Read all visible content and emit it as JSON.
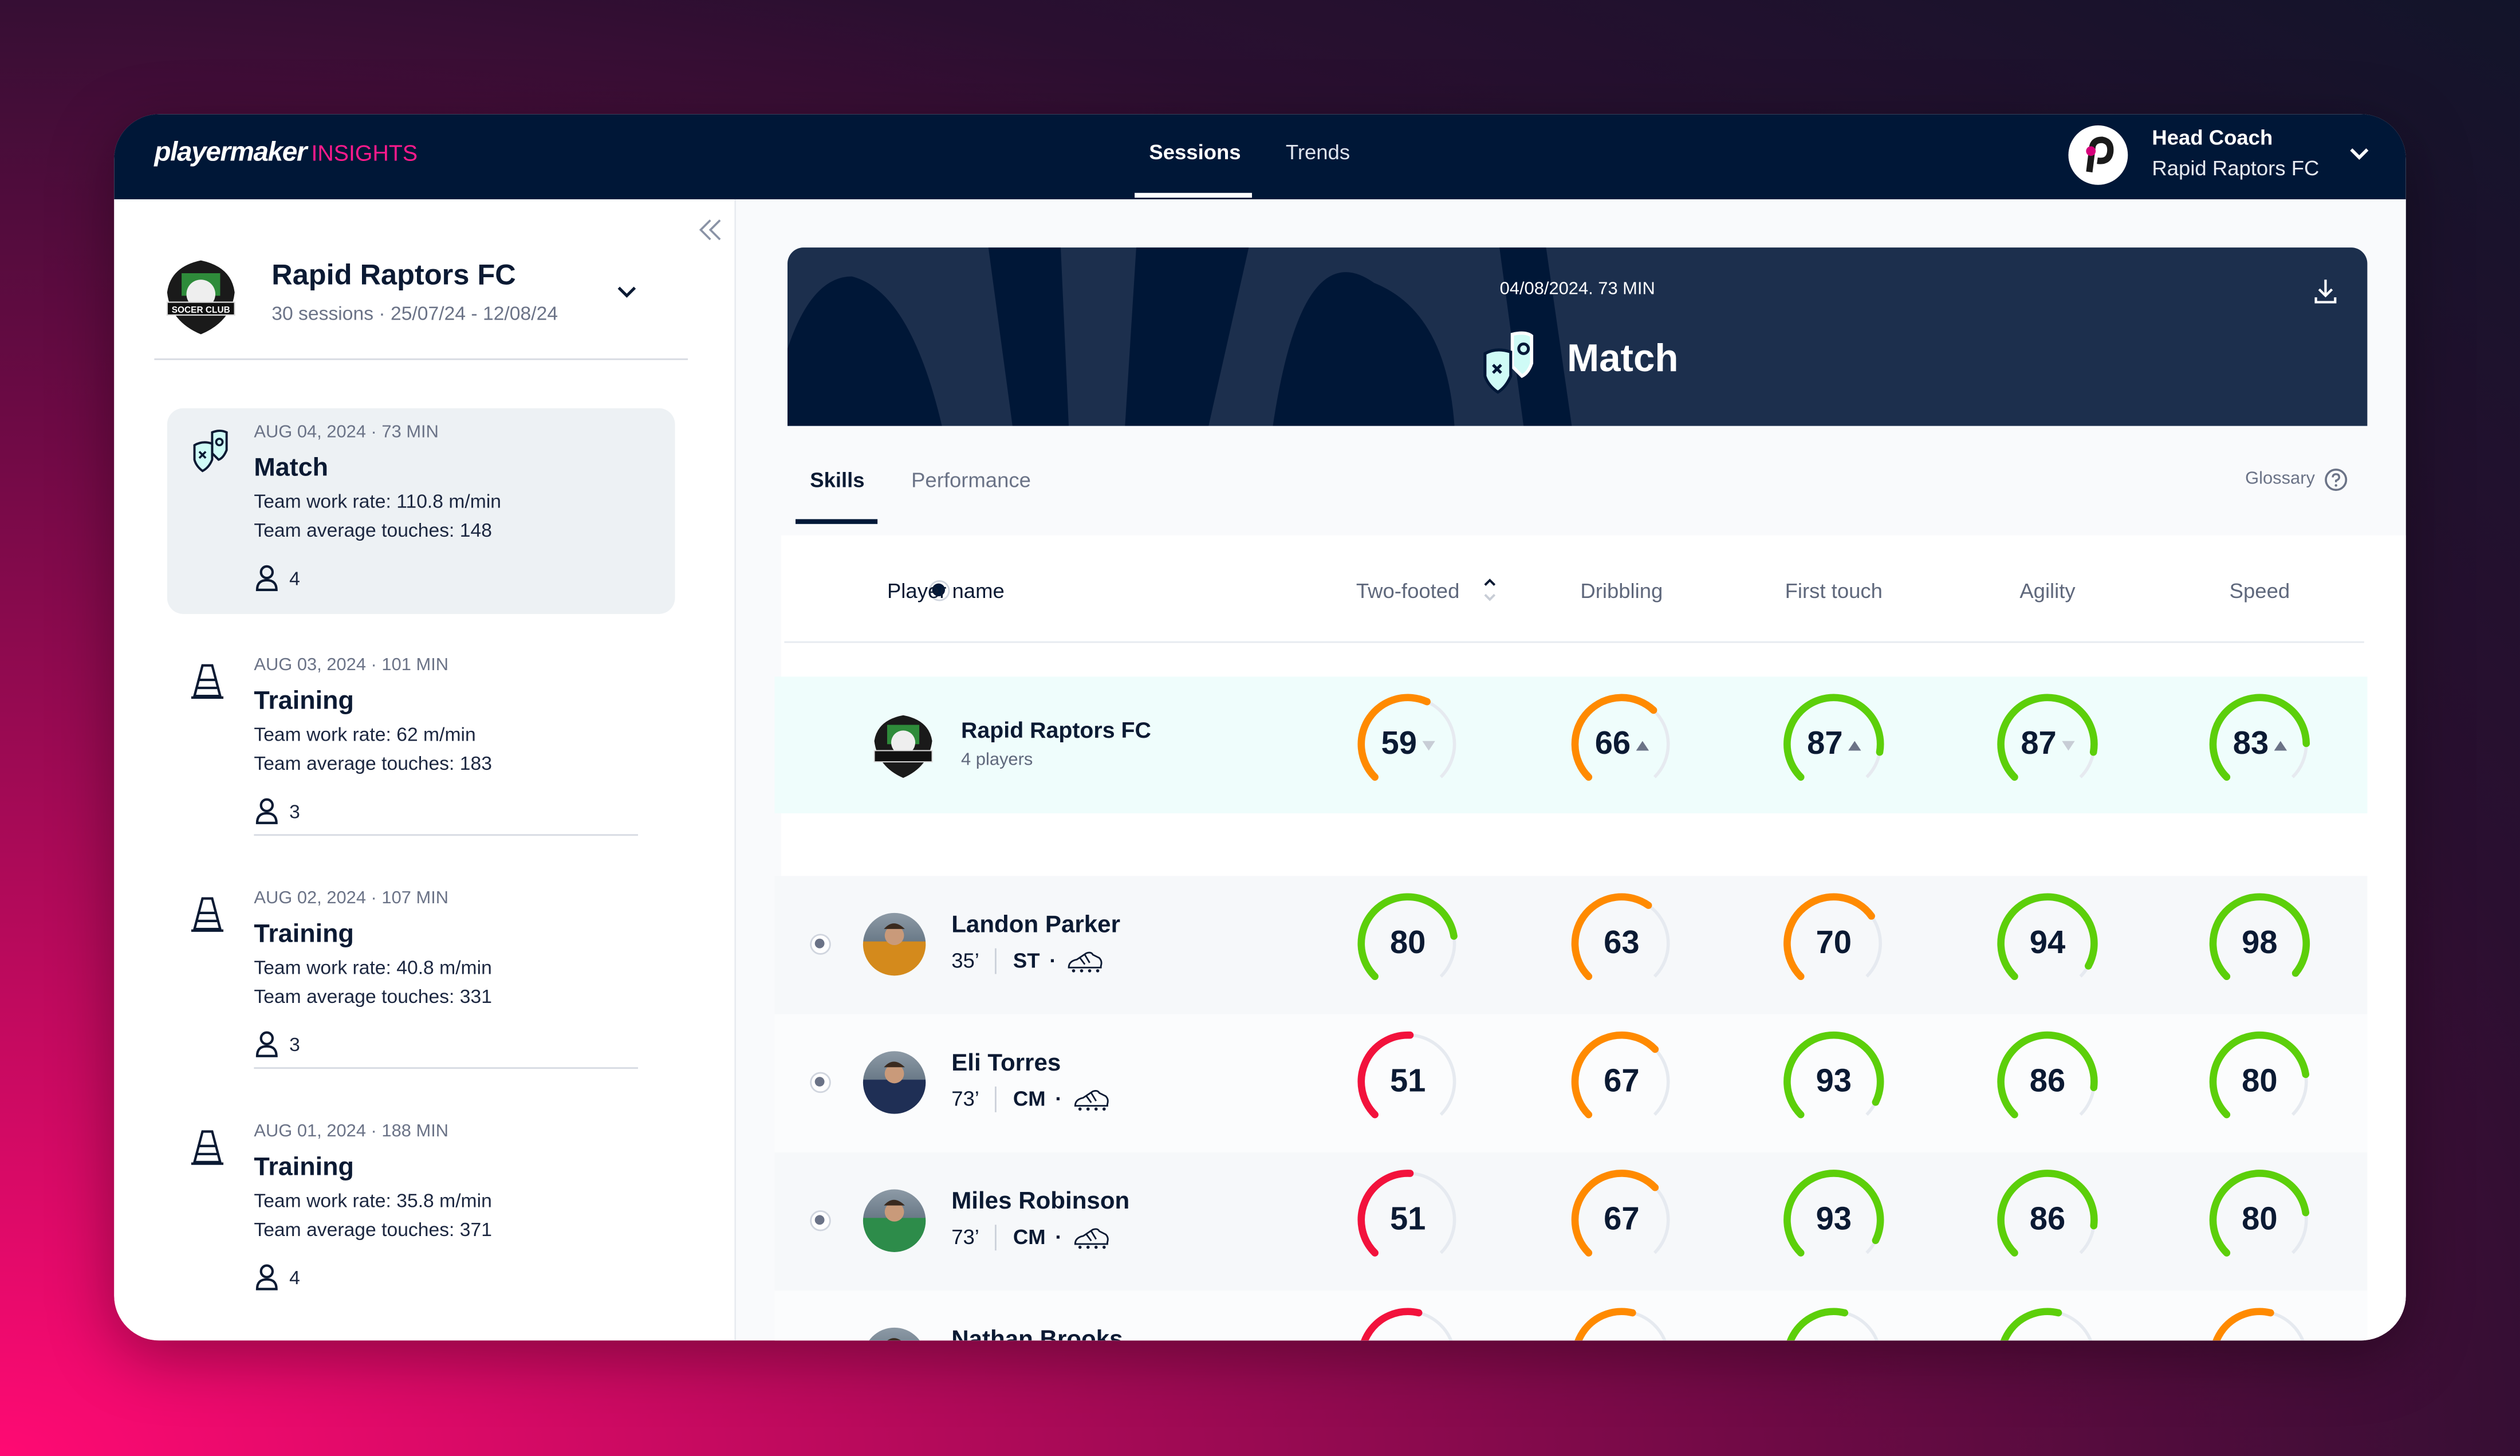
{
  "app": {
    "brand": "playermaker",
    "brand_suffix": "INSIGHTS",
    "accent": "#ff1a8c",
    "navy": "#001737"
  },
  "nav": {
    "tabs": [
      {
        "label": "Sessions",
        "active": true
      },
      {
        "label": "Trends",
        "active": false
      }
    ]
  },
  "user": {
    "role": "Head Coach",
    "team": "Rapid Raptors FC"
  },
  "sidebar": {
    "club_name": "Rapid Raptors FC",
    "club_crest_text": "SOCER CLUB",
    "summary": "30 sessions · 25/07/24 - 12/08/24",
    "sessions": [
      {
        "date": "AUG 04, 2024 · 73 MIN",
        "type": "Match",
        "icon": "match-shields-icon",
        "work_rate": "Team work rate: 110.8 m/min",
        "touches": "Team average touches: 148",
        "players": "4",
        "selected": true
      },
      {
        "date": "AUG 03, 2024 · 101 MIN",
        "type": "Training",
        "icon": "training-cone-icon",
        "work_rate": "Team work rate: 62 m/min",
        "touches": "Team average touches: 183",
        "players": "3",
        "selected": false
      },
      {
        "date": "AUG 02, 2024 · 107 MIN",
        "type": "Training",
        "icon": "training-cone-icon",
        "work_rate": "Team work rate: 40.8 m/min",
        "touches": "Team average touches: 331",
        "players": "3",
        "selected": false
      },
      {
        "date": "AUG 01, 2024 · 188 MIN",
        "type": "Training",
        "icon": "training-cone-icon",
        "work_rate": "Team work rate: 35.8 m/min",
        "touches": "Team average touches: 371",
        "players": "4",
        "selected": false
      }
    ]
  },
  "banner": {
    "date": "04/08/2024. 73 MIN",
    "title": "Match"
  },
  "tabs": [
    {
      "label": "Skills",
      "active": true
    },
    {
      "label": "Performance",
      "active": false
    }
  ],
  "glossary": "Glossary",
  "table": {
    "columns": [
      "Player name",
      "Two-footed",
      "Dribbling",
      "First touch",
      "Agility",
      "Speed"
    ],
    "sorted_column": "Two-footed",
    "colors": {
      "green": "#5ccf0a",
      "orange": "#ff8a00",
      "red": "#f2123c",
      "track": "#e6eaf0"
    },
    "team": {
      "name": "Rapid Raptors FC",
      "sub": "4 players",
      "values": [
        59,
        66,
        87,
        87,
        83
      ],
      "trends": [
        "down",
        "up",
        "up",
        "down",
        "up"
      ]
    },
    "players": [
      {
        "name": "Landon Parker",
        "minutes": "35’",
        "position": "ST",
        "values": [
          80,
          63,
          70,
          94,
          98
        ]
      },
      {
        "name": "Eli Torres",
        "minutes": "73’",
        "position": "CM",
        "values": [
          51,
          67,
          93,
          86,
          80
        ]
      },
      {
        "name": "Miles Robinson",
        "minutes": "73’",
        "position": "CM",
        "values": [
          51,
          67,
          93,
          86,
          80
        ]
      },
      {
        "name": "Nathan Brooks",
        "minutes": "",
        "position": "",
        "values": [
          null,
          null,
          null,
          null,
          null
        ],
        "gauge_colors": [
          "red",
          "orange",
          "green",
          "green",
          "orange"
        ]
      }
    ]
  }
}
